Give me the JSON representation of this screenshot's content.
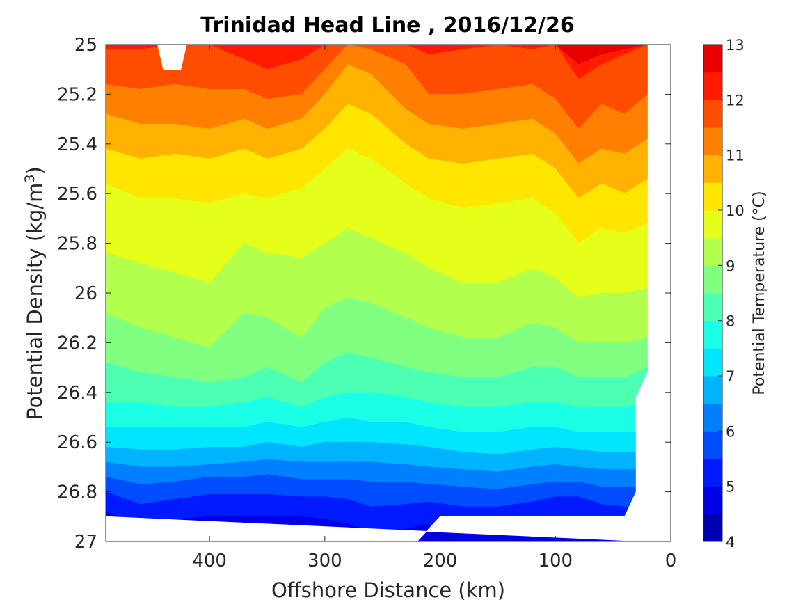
{
  "chart_data": {
    "type": "contourf",
    "title": "Trinidad Head Line , 2016/12/26",
    "xlabel": "Offshore Distance (km)",
    "ylabel_main": "Potential Density (kg/m",
    "ylabel_sup": "3",
    "ylabel_close": ")",
    "colorbar_label": "Potential Temperature (°C)",
    "x_reversed": true,
    "y_reversed": true,
    "xlim": [
      490,
      0
    ],
    "ylim": [
      25,
      27
    ],
    "xticks": [
      400,
      300,
      200,
      100,
      0
    ],
    "xtick_labels": [
      "400",
      "300",
      "200",
      "100",
      "0"
    ],
    "yticks": [
      25,
      25.2,
      25.4,
      25.6,
      25.8,
      26,
      26.2,
      26.4,
      26.6,
      26.8,
      27
    ],
    "ytick_labels": [
      "25",
      "25.2",
      "25.4",
      "25.6",
      "25.8",
      "26",
      "26.2",
      "26.4",
      "26.6",
      "26.8",
      "27"
    ],
    "colorbar_ticks": [
      4,
      5,
      6,
      7,
      8,
      9,
      10,
      11,
      12,
      13
    ],
    "colorbar_tick_labels": [
      "4",
      "5",
      "6",
      "7",
      "8",
      "9",
      "10",
      "11",
      "12",
      "13"
    ],
    "levels": [
      4,
      4.5,
      5,
      5.5,
      6,
      6.5,
      7,
      7.5,
      8,
      8.5,
      9,
      9.5,
      10,
      10.5,
      11,
      11.5,
      12,
      12.5,
      13
    ],
    "level_colors": [
      "#000080",
      "#0000b3",
      "#0000e6",
      "#001aff",
      "#004dff",
      "#0080ff",
      "#00b3ff",
      "#00e6ff",
      "#1affe6",
      "#4dffb3",
      "#80ff80",
      "#b3ff4d",
      "#e6ff1a",
      "#ffe600",
      "#ffb300",
      "#ff8000",
      "#ff4d00",
      "#ff1a00",
      "#e60000",
      "#b30000"
    ],
    "x_range_data": [
      490,
      20
    ],
    "isolines": [
      {
        "level": 12.5,
        "x": [
          490,
          460,
          430,
          400,
          370,
          350,
          320,
          300,
          280,
          260,
          230,
          210,
          180,
          150,
          120,
          100,
          80,
          60,
          40,
          20
        ],
        "y": [
          25.0,
          25.0,
          25.0,
          25.0,
          25.0,
          25.0,
          25.0,
          25.0,
          25.0,
          25.0,
          25.0,
          25.0,
          25.0,
          25.0,
          25.0,
          25.0,
          25.08,
          25.04,
          25.02,
          25.0
        ]
      },
      {
        "level": 12.0,
        "x": [
          490,
          460,
          430,
          400,
          370,
          350,
          320,
          300,
          280,
          260,
          230,
          210,
          180,
          150,
          120,
          100,
          80,
          60,
          40,
          20
        ],
        "y": [
          25.02,
          25.02,
          25.0,
          25.0,
          25.06,
          25.1,
          25.06,
          25.0,
          25.0,
          25.0,
          25.0,
          25.04,
          25.02,
          25.0,
          25.02,
          25.0,
          25.14,
          25.08,
          25.04,
          25.0
        ]
      },
      {
        "level": 11.5,
        "x": [
          490,
          460,
          430,
          400,
          370,
          350,
          320,
          300,
          280,
          260,
          230,
          210,
          180,
          150,
          120,
          100,
          80,
          60,
          40,
          20
        ],
        "y": [
          25.16,
          25.18,
          25.16,
          25.18,
          25.18,
          25.22,
          25.2,
          25.1,
          25.0,
          25.02,
          25.08,
          25.2,
          25.2,
          25.18,
          25.16,
          25.22,
          25.34,
          25.24,
          25.28,
          25.2
        ]
      },
      {
        "level": 11.0,
        "x": [
          490,
          460,
          430,
          400,
          370,
          350,
          320,
          300,
          280,
          260,
          230,
          210,
          180,
          150,
          120,
          100,
          80,
          60,
          40,
          20
        ],
        "y": [
          25.28,
          25.32,
          25.32,
          25.34,
          25.3,
          25.34,
          25.3,
          25.2,
          25.08,
          25.12,
          25.26,
          25.32,
          25.34,
          25.32,
          25.3,
          25.36,
          25.48,
          25.42,
          25.44,
          25.38
        ]
      },
      {
        "level": 10.5,
        "x": [
          490,
          460,
          430,
          400,
          370,
          350,
          320,
          300,
          280,
          260,
          230,
          210,
          180,
          150,
          120,
          100,
          80,
          60,
          40,
          20
        ],
        "y": [
          25.42,
          25.46,
          25.44,
          25.46,
          25.42,
          25.46,
          25.42,
          25.34,
          25.24,
          25.28,
          25.4,
          25.46,
          25.48,
          25.46,
          25.44,
          25.5,
          25.62,
          25.56,
          25.6,
          25.54
        ]
      },
      {
        "level": 10.0,
        "x": [
          490,
          460,
          430,
          400,
          370,
          350,
          320,
          300,
          280,
          260,
          230,
          210,
          180,
          150,
          120,
          100,
          80,
          60,
          40,
          20
        ],
        "y": [
          25.56,
          25.62,
          25.62,
          25.64,
          25.6,
          25.62,
          25.58,
          25.5,
          25.42,
          25.46,
          25.56,
          25.62,
          25.66,
          25.64,
          25.62,
          25.68,
          25.8,
          25.74,
          25.76,
          25.72
        ]
      },
      {
        "level": 9.5,
        "x": [
          490,
          460,
          430,
          400,
          370,
          350,
          320,
          300,
          280,
          260,
          230,
          210,
          180,
          150,
          120,
          100,
          80,
          60,
          40,
          20
        ],
        "y": [
          25.84,
          25.88,
          25.92,
          25.96,
          25.8,
          25.84,
          25.86,
          25.8,
          25.74,
          25.78,
          25.84,
          25.9,
          25.96,
          25.96,
          25.9,
          25.94,
          26.02,
          26.0,
          26.0,
          25.98
        ]
      },
      {
        "level": 9.0,
        "x": [
          490,
          460,
          430,
          400,
          370,
          350,
          320,
          300,
          280,
          260,
          230,
          210,
          180,
          150,
          120,
          100,
          80,
          60,
          40,
          20
        ],
        "y": [
          26.08,
          26.14,
          26.18,
          26.22,
          26.08,
          26.1,
          26.18,
          26.06,
          26.02,
          26.04,
          26.1,
          26.14,
          26.18,
          26.18,
          26.12,
          26.14,
          26.2,
          26.2,
          26.2,
          26.18
        ]
      },
      {
        "level": 8.5,
        "x": [
          490,
          460,
          430,
          400,
          370,
          350,
          320,
          300,
          280,
          260,
          230,
          210,
          180,
          150,
          120,
          100,
          80,
          60,
          40,
          20
        ],
        "y": [
          26.28,
          26.32,
          26.34,
          26.36,
          26.34,
          26.3,
          26.36,
          26.28,
          26.24,
          26.26,
          26.3,
          26.32,
          26.34,
          26.34,
          26.3,
          26.3,
          26.34,
          26.34,
          26.34,
          26.3
        ]
      },
      {
        "level": 8.0,
        "x": [
          490,
          460,
          430,
          400,
          370,
          350,
          320,
          300,
          280,
          260,
          230,
          210,
          180,
          150,
          120,
          100,
          80,
          60,
          40,
          20
        ],
        "y": [
          26.44,
          26.44,
          26.46,
          26.46,
          26.44,
          26.42,
          26.46,
          26.42,
          26.4,
          26.4,
          26.42,
          26.44,
          26.46,
          26.46,
          26.44,
          26.44,
          26.46,
          26.46,
          26.46,
          26.44
        ]
      },
      {
        "level": 7.5,
        "x": [
          490,
          460,
          430,
          400,
          370,
          350,
          320,
          300,
          280,
          260,
          230,
          210,
          180,
          150,
          120,
          100,
          80,
          60,
          40,
          20
        ],
        "y": [
          26.54,
          26.54,
          26.54,
          26.54,
          26.54,
          26.52,
          26.54,
          26.52,
          26.5,
          26.52,
          26.52,
          26.54,
          26.56,
          26.56,
          26.54,
          26.54,
          26.56,
          26.56,
          26.56,
          26.56
        ]
      },
      {
        "level": 7.0,
        "x": [
          490,
          460,
          430,
          400,
          370,
          350,
          320,
          300,
          280,
          260,
          230,
          210,
          180,
          150,
          120,
          100,
          80,
          60,
          40,
          20
        ],
        "y": [
          26.62,
          26.63,
          26.63,
          26.62,
          26.62,
          26.6,
          26.62,
          26.6,
          26.6,
          26.6,
          26.61,
          26.62,
          26.64,
          26.65,
          26.63,
          26.62,
          26.63,
          26.64,
          26.64,
          26.64
        ]
      },
      {
        "level": 6.5,
        "x": [
          490,
          460,
          430,
          400,
          370,
          350,
          320,
          300,
          280,
          260,
          230,
          210,
          180,
          150,
          120,
          100,
          80,
          60,
          40,
          20
        ],
        "y": [
          26.68,
          26.7,
          26.7,
          26.69,
          26.68,
          26.67,
          26.68,
          26.68,
          26.68,
          26.68,
          26.69,
          26.7,
          26.71,
          26.72,
          26.7,
          26.69,
          26.7,
          26.71,
          26.71,
          26.71
        ]
      },
      {
        "level": 6.0,
        "x": [
          490,
          460,
          430,
          400,
          370,
          350,
          320,
          300,
          280,
          260,
          230,
          210,
          180,
          150,
          120,
          100,
          80,
          60,
          40,
          20
        ],
        "y": [
          26.74,
          26.77,
          26.76,
          26.74,
          26.74,
          26.73,
          26.75,
          26.75,
          26.75,
          26.76,
          26.76,
          26.77,
          26.78,
          26.79,
          26.77,
          26.76,
          26.76,
          26.78,
          26.78,
          26.78
        ]
      },
      {
        "level": 5.5,
        "x": [
          490,
          460,
          430,
          400,
          370,
          350,
          320,
          300,
          280,
          260,
          230,
          210,
          180,
          150,
          120,
          100,
          80,
          60,
          40,
          20
        ],
        "y": [
          26.8,
          26.85,
          26.83,
          26.81,
          26.81,
          26.81,
          26.82,
          26.82,
          26.83,
          26.86,
          26.85,
          26.84,
          26.86,
          26.86,
          26.84,
          26.82,
          26.82,
          26.85,
          26.86,
          26.86
        ]
      },
      {
        "level": 5.0,
        "x": [
          490,
          460,
          430,
          400,
          370,
          350,
          320,
          300,
          280,
          260,
          230,
          210,
          180,
          150,
          120,
          100,
          80,
          60,
          40,
          20
        ],
        "y": [
          26.88,
          26.93,
          26.91,
          26.9,
          26.9,
          26.9,
          26.9,
          26.91,
          26.93,
          26.96,
          26.95,
          26.93,
          26.95,
          26.94,
          26.92,
          26.9,
          26.9,
          26.93,
          26.95,
          26.95
        ]
      }
    ],
    "masks": [
      {
        "name": "top-notch",
        "x": [
          445,
          440,
          435,
          425,
          420
        ],
        "y": [
          25.0,
          25.1,
          25.1,
          25.1,
          25.0
        ]
      },
      {
        "name": "bottom-left-gap",
        "x": [
          490,
          490,
          280,
          265,
          230,
          220,
          200,
          40,
          30,
          30,
          20,
          20
        ],
        "y": [
          26.9,
          27.0,
          27.0,
          27.0,
          27.0,
          27.0,
          26.9,
          26.9,
          26.8,
          26.42,
          26.32,
          27.0
        ]
      }
    ],
    "bottom_data_boundary": {
      "x": [
        490,
        280,
        268,
        262,
        232,
        222,
        200,
        40,
        30,
        30,
        20
      ],
      "y": [
        26.9,
        26.9,
        27.0,
        27.0,
        27.0,
        26.9,
        26.9,
        26.9,
        26.8,
        26.42,
        26.32
      ]
    },
    "right_data_boundary_x": 20
  }
}
